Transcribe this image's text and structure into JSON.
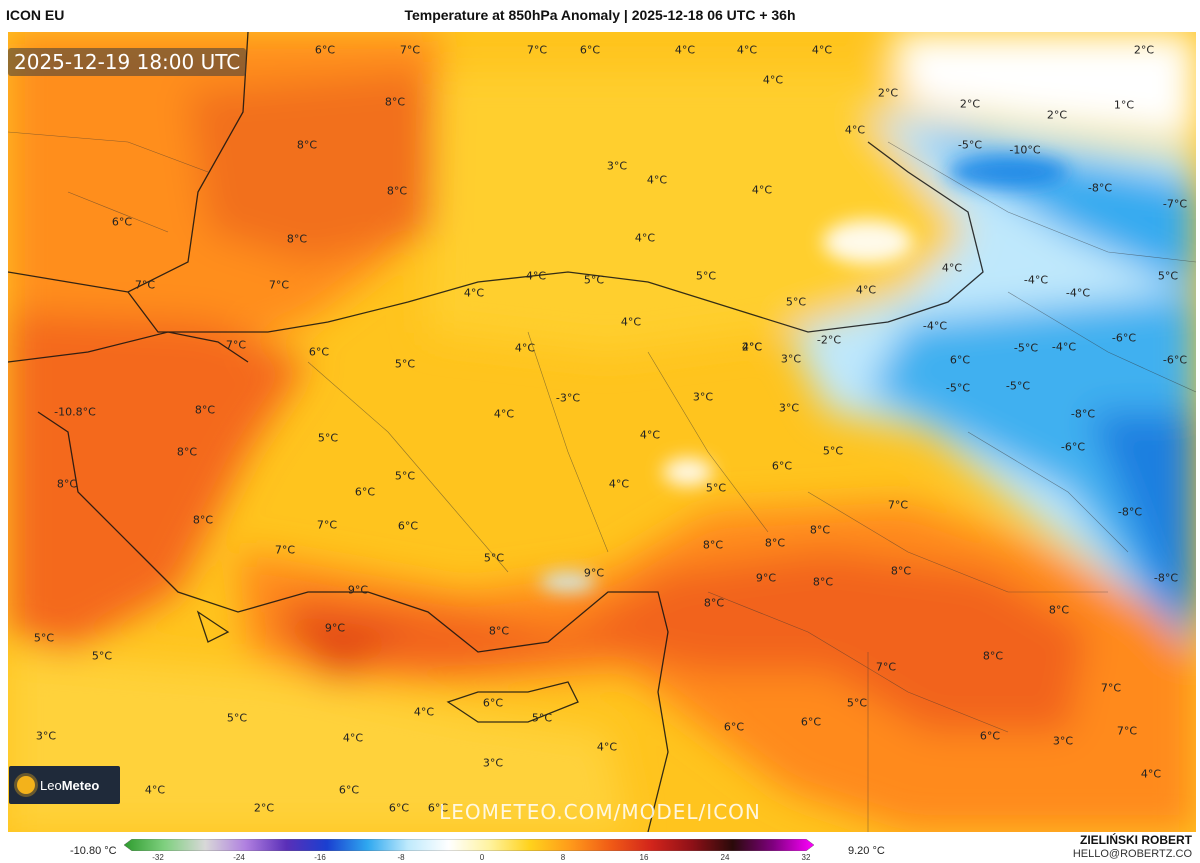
{
  "header": {
    "model": "ICON EU",
    "title": "Temperature at 850hPa Anomaly | 2025-12-18 06 UTC + 36h"
  },
  "map": {
    "valid_time": "2025-12-19 18:00 UTC",
    "watermark": "LEOMETEO.COM/MODEL/ICON",
    "logo_text_a": "Leo",
    "logo_text_b": "Meteo",
    "labels": [
      "6°C",
      "7°C",
      "7°C",
      "6°C",
      "4°C",
      "4°C",
      "4°C",
      "2°C",
      "8°C",
      "4°C",
      "2°C",
      "2°C",
      "1°C",
      "2°C",
      "4°C",
      "8°C",
      "-5°C",
      "-10°C",
      "3°C",
      "4°C",
      "4°C",
      "-8°C",
      "-7°C",
      "8°C",
      "6°C",
      "8°C",
      "4°C",
      "4°C",
      "4°C",
      "4°C",
      "5°C",
      "5°C",
      "-4°C",
      "-4°C",
      "5°C",
      "7°C",
      "7°C",
      "4°C",
      "5°C",
      "4°C",
      "4°C",
      "-4°C",
      "-6°C",
      "-6°C",
      "7°C",
      "6°C",
      "5°C",
      "4°C",
      "2°C",
      "3°C",
      "-2°C",
      "-5°C",
      "-4°C",
      "6°C",
      "-10.8°C",
      "8°C",
      "-3°C",
      "3°C",
      "3°C",
      "-5°C",
      "-5°C",
      "-8°C",
      "8°C",
      "5°C",
      "4°C",
      "4°C",
      "6°C",
      "5°C",
      "-6°C",
      "8°C",
      "8°C",
      "5°C",
      "4°C",
      "5°C",
      "6°C",
      "6°C",
      "7°C",
      "7°C",
      "8°C",
      "-8°C",
      "7°C",
      "5°C",
      "8°C",
      "8°C",
      "9°C",
      "9°C",
      "9°C",
      "8°C",
      "8°C",
      "-8°C",
      "9°C",
      "8°C",
      "8°C",
      "8°C",
      "5°C",
      "5°C",
      "7°C",
      "8°C",
      "7°C",
      "5°C",
      "4°C",
      "6°C",
      "5°C",
      "6°C",
      "5°C",
      "3°C",
      "4°C",
      "4°C",
      "6°C",
      "6°C",
      "7°C",
      "3°C",
      "4°C",
      "6°C",
      "3°C",
      "4°C",
      "2°C",
      "6°C",
      "6°C"
    ]
  },
  "colorbar": {
    "min_label": "-10.80 °C",
    "max_label": "9.20 °C",
    "ticks": [
      "-32",
      "-24",
      "-16",
      "-8",
      "0",
      "8",
      "16",
      "24",
      "32"
    ],
    "stops": [
      "#2e9c2e",
      "#7fd07f",
      "#d8d8d8",
      "#b080e0",
      "#5a2fb8",
      "#1a3fd0",
      "#2fa8f0",
      "#bfeafc",
      "#ffffff",
      "#fff3a0",
      "#ffd21c",
      "#ff9a1a",
      "#f05a16",
      "#d2241b",
      "#8e1017",
      "#2a0a0a",
      "#800080",
      "#ff00ff"
    ]
  },
  "footer": {
    "author": "ZIELIŃSKI ROBERT",
    "email": "HELLO@ROBERTZ.CO"
  }
}
